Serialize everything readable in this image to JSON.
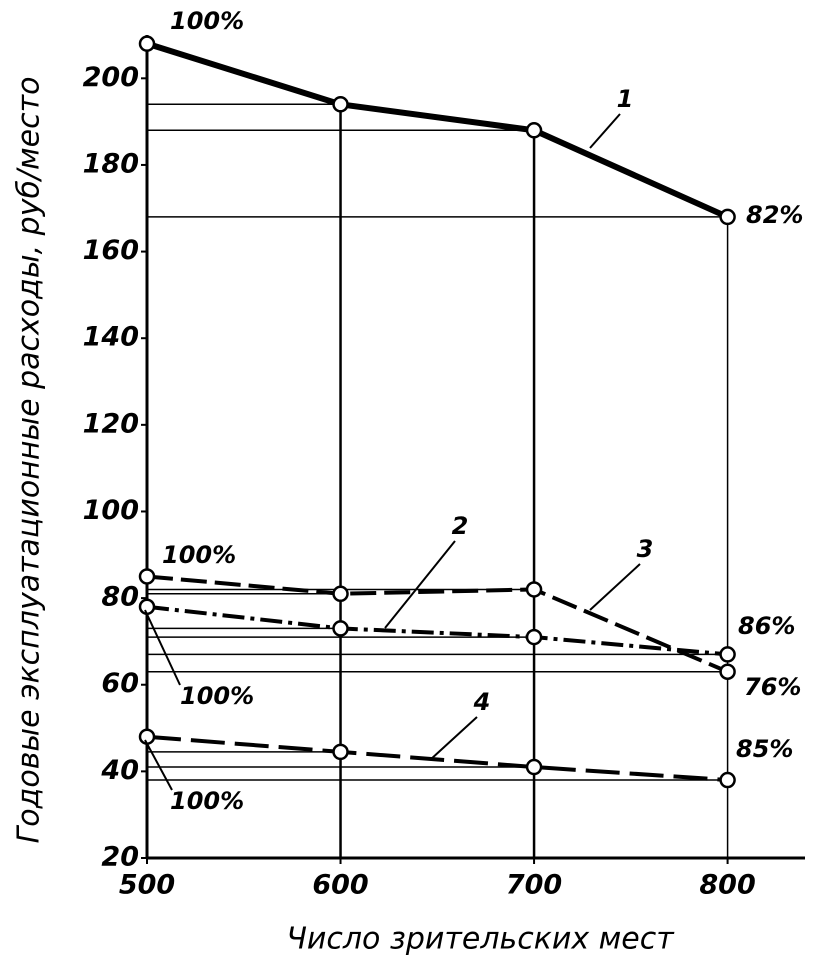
{
  "chart_data": {
    "type": "line",
    "x_label": "Число зрительских мест",
    "y_label": "Годовые эксплуатационные расходы, руб/место",
    "x": [
      500,
      600,
      700,
      800
    ],
    "xlim": [
      500,
      840
    ],
    "xticks": [
      500,
      600,
      700,
      800
    ],
    "ylim": [
      20,
      210
    ],
    "yticks": [
      20,
      40,
      60,
      80,
      100,
      120,
      140,
      160,
      180,
      200
    ],
    "series": [
      {
        "name": "1",
        "color": "#000000",
        "line_style": "solid",
        "values": [
          208,
          194,
          188,
          168
        ]
      },
      {
        "name": "2",
        "color": "#000000",
        "line_style": "dash-dot",
        "values": [
          78,
          73,
          71,
          67
        ]
      },
      {
        "name": "3",
        "color": "#000000",
        "line_style": "dashed",
        "values": [
          85,
          81,
          82,
          63
        ]
      },
      {
        "name": "4",
        "color": "#000000",
        "line_style": "long-dash",
        "values": [
          48,
          44.5,
          41,
          38
        ]
      }
    ],
    "annotations": [
      "100%",
      "82%",
      "100%",
      "86%",
      "100%",
      "76%",
      "100%",
      "85%"
    ]
  }
}
